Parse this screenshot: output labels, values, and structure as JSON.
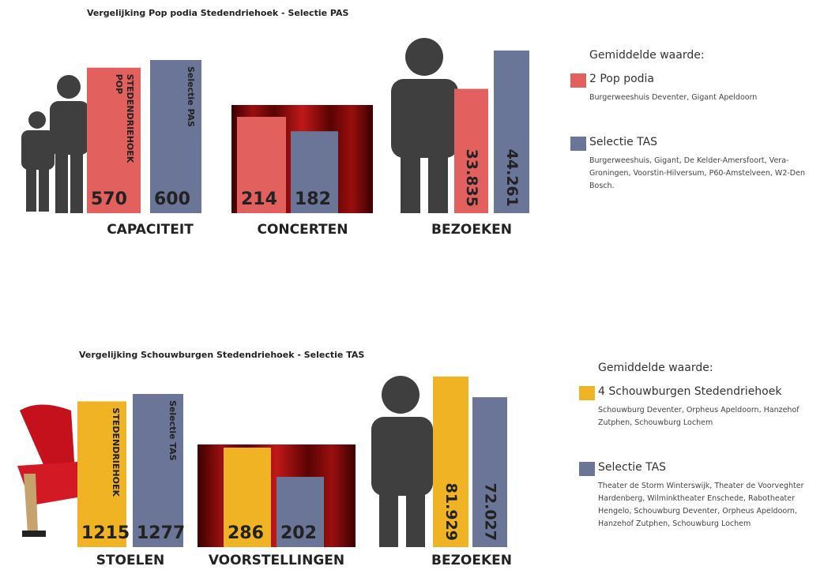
{
  "chart_data": [
    {
      "type": "bar",
      "title": "Vergelijking Pop podia Stedendriehoek - Selectie PAS",
      "legend_title": "Gemiddelde waarde:",
      "categories": [
        "CAPACITEIT",
        "CONCERTEN",
        "BEZOEKEN"
      ],
      "series": [
        {
          "name": "2 Pop podia",
          "color": "#e2615e",
          "description": "Burgerweeshuis Deventer, Gigant Apeldoorn",
          "bar_label": [
            "STEDENDRIEHOEK",
            "POP"
          ],
          "values": [
            570,
            214,
            33835
          ],
          "value_labels": [
            "570",
            "214",
            "33.835"
          ]
        },
        {
          "name": "Selectie TAS",
          "color": "#6a7598",
          "description": "Burgerweeshuis, Gigant, De Kelder-Amersfoort, Vera-Groningen, Voorstin-Hilversum, P60-Amstelveen, W2-Den Bosch.",
          "bar_label": [
            "Selectie PAS"
          ],
          "values": [
            600,
            182,
            44261
          ],
          "value_labels": [
            "600",
            "182",
            "44.261"
          ]
        }
      ]
    },
    {
      "type": "bar",
      "title": "Vergelijking Schouwburgen Stedendriehoek - Selectie TAS",
      "legend_title": "Gemiddelde waarde:",
      "categories": [
        "STOELEN",
        "VOORSTELLINGEN",
        "BEZOEKEN"
      ],
      "series": [
        {
          "name": "4 Schouwburgen Stedendriehoek",
          "color": "#f0b323",
          "description": "Schouwburg Deventer, Orpheus Apeldoorn, Hanzehof Zutphen, Schouwburg Lochem",
          "bar_label": [
            "STEDENDRIEHOEK"
          ],
          "values": [
            1215,
            286,
            81929
          ],
          "value_labels": [
            "1215",
            "286",
            "81.929"
          ]
        },
        {
          "name": "Selectie TAS",
          "color": "#6a7598",
          "description": "Theater de Storm Winterswijk, Theater de Voorveghter Hardenberg, Wilminktheater Enschede, Rabotheater Hengelo, Schouwburg Deventer, Orpheus Apeldoorn, Hanzehof Zutphen, Schouwburg Lochem",
          "bar_label": [
            "Selectie TAS"
          ],
          "values": [
            1277,
            202,
            72027
          ],
          "value_labels": [
            "1277",
            "202",
            "72.027"
          ]
        }
      ]
    }
  ]
}
